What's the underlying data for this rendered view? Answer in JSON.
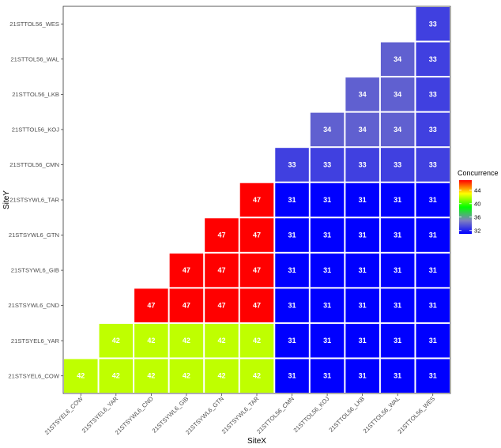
{
  "chart_data": {
    "type": "heatmap",
    "xlabel": "SiteX",
    "ylabel": "SiteY",
    "x_categories": [
      "21STSYEL6_COW",
      "21STSYEL6_YAR",
      "21STSYWL6_CND",
      "21STSYWL6_GIB",
      "21STSYWL6_GTN",
      "21STSYWL6_TAR",
      "21STTOL56_CMN",
      "21STTOL56_KOJ",
      "21STTOL56_LKB",
      "21STTOL56_WAL",
      "21STTOL56_WES"
    ],
    "y_categories": [
      "21STSYEL6_COW",
      "21STSYEL6_YAR",
      "21STSYWL6_CND",
      "21STSYWL6_GIB",
      "21STSYWL6_GTN",
      "21STSYWL6_TAR",
      "21STTOL56_CMN",
      "21STTOL56_KOJ",
      "21STTOL56_LKB",
      "21STTOL56_WAL",
      "21STTOL56_WES"
    ],
    "values": [
      [
        42,
        42,
        42,
        42,
        42,
        42,
        31,
        31,
        31,
        31,
        31
      ],
      [
        null,
        42,
        42,
        42,
        42,
        42,
        31,
        31,
        31,
        31,
        31
      ],
      [
        null,
        null,
        47,
        47,
        47,
        47,
        31,
        31,
        31,
        31,
        31
      ],
      [
        null,
        null,
        null,
        47,
        47,
        47,
        31,
        31,
        31,
        31,
        31
      ],
      [
        null,
        null,
        null,
        null,
        47,
        47,
        31,
        31,
        31,
        31,
        31
      ],
      [
        null,
        null,
        null,
        null,
        null,
        47,
        31,
        31,
        31,
        31,
        31
      ],
      [
        null,
        null,
        null,
        null,
        null,
        null,
        33,
        33,
        33,
        33,
        33
      ],
      [
        null,
        null,
        null,
        null,
        null,
        null,
        null,
        34,
        34,
        34,
        33
      ],
      [
        null,
        null,
        null,
        null,
        null,
        null,
        null,
        null,
        34,
        34,
        33
      ],
      [
        null,
        null,
        null,
        null,
        null,
        null,
        null,
        null,
        null,
        34,
        33
      ],
      [
        null,
        null,
        null,
        null,
        null,
        null,
        null,
        null,
        null,
        null,
        33
      ]
    ],
    "legend": {
      "title": "Concurrence",
      "ticks": [
        32,
        36,
        40,
        44
      ],
      "range": [
        31,
        47
      ],
      "colors": [
        "#0000ff",
        "#8080c0",
        "#00ff00",
        "#ffff00",
        "#ff0000"
      ],
      "position": "right"
    },
    "grid": false
  }
}
